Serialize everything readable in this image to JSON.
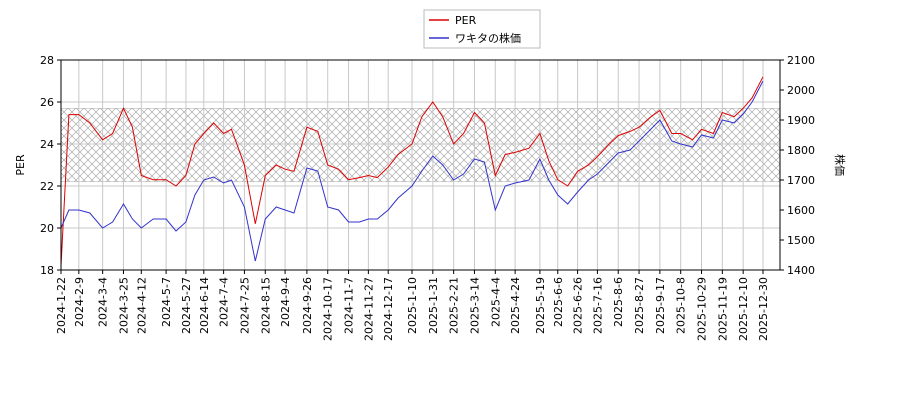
{
  "chart_data": {
    "type": "line",
    "x": [
      "2024-1-22",
      "2024-1-30",
      "2024-2-9",
      "2024-2-20",
      "2024-3-4",
      "2024-3-14",
      "2024-3-25",
      "2024-4-3",
      "2024-4-12",
      "2024-4-24",
      "2024-5-7",
      "2024-5-17",
      "2024-5-27",
      "2024-6-5",
      "2024-6-14",
      "2024-6-24",
      "2024-7-4",
      "2024-7-12",
      "2024-7-25",
      "2024-8-5",
      "2024-8-15",
      "2024-8-26",
      "2024-9-4",
      "2024-9-13",
      "2024-9-26",
      "2024-10-7",
      "2024-10-17",
      "2024-10-28",
      "2024-11-7",
      "2024-11-18",
      "2024-11-27",
      "2024-12-6",
      "2024-12-17",
      "2024-12-27",
      "2025-1-10",
      "2025-1-20",
      "2025-1-31",
      "2025-2-10",
      "2025-2-21",
      "2025-3-3",
      "2025-3-14",
      "2025-3-24",
      "2025-4-4",
      "2025-4-14",
      "2025-4-24",
      "2025-5-8",
      "2025-5-19",
      "2025-5-28",
      "2025-6-6",
      "2025-6-16",
      "2025-6-26",
      "2025-7-7",
      "2025-7-16",
      "2025-7-28",
      "2025-8-6",
      "2025-8-18",
      "2025-8-27",
      "2025-9-8",
      "2025-9-17",
      "2025-9-29",
      "2025-10-8",
      "2025-10-20",
      "2025-10-29",
      "2025-11-10",
      "2025-11-19",
      "2025-12-1",
      "2025-12-10",
      "2025-12-19",
      "2025-12-30"
    ],
    "series": [
      {
        "name": "PER",
        "color": "#dd0000",
        "axis": "y",
        "values": [
          18.2,
          25.4,
          25.4,
          25.0,
          24.2,
          24.5,
          25.7,
          24.8,
          22.5,
          22.3,
          22.3,
          22.0,
          22.5,
          24.0,
          24.5,
          25.0,
          24.5,
          24.7,
          23.0,
          20.2,
          22.5,
          23.0,
          22.8,
          22.7,
          24.8,
          24.6,
          23.0,
          22.8,
          22.3,
          22.4,
          22.5,
          22.4,
          22.9,
          23.5,
          24.0,
          25.3,
          26.0,
          25.3,
          24.0,
          24.5,
          25.5,
          25.0,
          22.5,
          23.5,
          23.6,
          23.8,
          24.5,
          23.2,
          22.3,
          22.0,
          22.7,
          23.0,
          23.4,
          24.0,
          24.4,
          24.6,
          24.8,
          25.3,
          25.6,
          24.5,
          24.5,
          24.2,
          24.7,
          24.5,
          25.5,
          25.3,
          25.7,
          26.2,
          27.2
        ]
      },
      {
        "name": "ワキタの株価",
        "color": "#3333cc",
        "axis": "y2",
        "values": [
          1540,
          1600,
          1600,
          1590,
          1540,
          1560,
          1620,
          1570,
          1540,
          1570,
          1570,
          1530,
          1560,
          1650,
          1700,
          1710,
          1690,
          1700,
          1610,
          1430,
          1570,
          1610,
          1600,
          1590,
          1740,
          1730,
          1610,
          1600,
          1560,
          1560,
          1570,
          1570,
          1600,
          1640,
          1680,
          1730,
          1780,
          1750,
          1700,
          1720,
          1770,
          1760,
          1600,
          1680,
          1690,
          1700,
          1770,
          1700,
          1650,
          1620,
          1660,
          1700,
          1720,
          1760,
          1790,
          1800,
          1830,
          1870,
          1900,
          1830,
          1820,
          1810,
          1850,
          1840,
          1900,
          1890,
          1920,
          1960,
          2030
        ]
      }
    ],
    "xlim": [
      "2024-1-22",
      "2025-12-30"
    ],
    "xticks": [
      "2024-1-22",
      "2024-2-9",
      "2024-3-4",
      "2024-3-25",
      "2024-4-12",
      "2024-5-7",
      "2024-5-27",
      "2024-6-14",
      "2024-7-4",
      "2024-7-25",
      "2024-8-15",
      "2024-9-4",
      "2024-9-26",
      "2024-10-17",
      "2024-11-7",
      "2024-11-27",
      "2024-12-17",
      "2025-1-10",
      "2025-1-31",
      "2025-2-21",
      "2025-3-14",
      "2025-4-4",
      "2025-4-24",
      "2025-5-19",
      "2025-6-6",
      "2025-6-26",
      "2025-7-16",
      "2025-8-6",
      "2025-8-27",
      "2025-9-17",
      "2025-10-8",
      "2025-10-29",
      "2025-11-19",
      "2025-12-10",
      "2025-12-30"
    ],
    "ylabel": "PER",
    "ylim": [
      18,
      28
    ],
    "yticks": [
      18,
      20,
      22,
      24,
      26,
      28
    ],
    "y2label": "株価",
    "y2lim": [
      1400,
      2100
    ],
    "y2ticks": [
      1400,
      1500,
      1600,
      1700,
      1800,
      1900,
      2000,
      2100
    ],
    "band": [
      22.2,
      25.7
    ],
    "grid": true,
    "legend": "top"
  }
}
